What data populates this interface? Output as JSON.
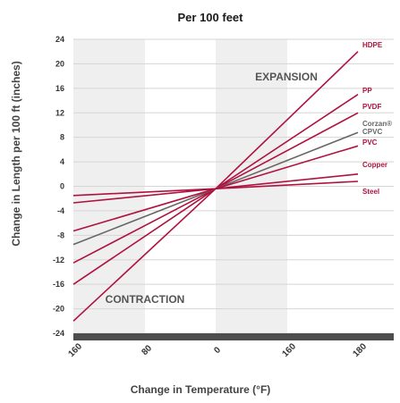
{
  "chart_data": {
    "type": "line",
    "title": "Per 100 feet",
    "xlabel": "Change in Temperature (°F)",
    "ylabel": "Change in Length per 100 ft (inches)",
    "ylim": [
      -24,
      24
    ],
    "y_ticks": [
      "24",
      "20",
      "16",
      "12",
      "8",
      "4",
      "0",
      "-4",
      "-8",
      "-12",
      "-16",
      "-20",
      "-24"
    ],
    "x_ticks": [
      "160",
      "80",
      "0",
      "160",
      "180"
    ],
    "x_domain": [
      -160,
      0,
      180
    ],
    "annotations": {
      "expansion": "EXPANSION",
      "contraction": "CONTRACTION"
    },
    "colors": {
      "line": "#b0123f",
      "cpvc_line": "#666666",
      "bottom_bar": "#4d4d4d",
      "band": "#efefef",
      "grid": "#d5d5d5"
    },
    "series": [
      {
        "name": "HDPE",
        "values": [
          [
            -160,
            -22
          ],
          [
            0,
            -0.4
          ],
          [
            180,
            22
          ]
        ],
        "color": "#b0123f"
      },
      {
        "name": "PP",
        "values": [
          [
            -160,
            -16
          ],
          [
            0,
            -0.4
          ],
          [
            180,
            15
          ]
        ],
        "color": "#b0123f"
      },
      {
        "name": "PVDF",
        "values": [
          [
            -160,
            -12.5
          ],
          [
            0,
            -0.4
          ],
          [
            180,
            12
          ]
        ],
        "color": "#b0123f"
      },
      {
        "name": "Corzan® CPVC",
        "values": [
          [
            -160,
            -9.5
          ],
          [
            0,
            -0.4
          ],
          [
            180,
            8.8
          ]
        ],
        "color": "#666666"
      },
      {
        "name": "PVC",
        "values": [
          [
            -160,
            -7.3
          ],
          [
            0,
            -0.4
          ],
          [
            180,
            6.6
          ]
        ],
        "color": "#b0123f"
      },
      {
        "name": "Copper",
        "values": [
          [
            -160,
            -2.7
          ],
          [
            0,
            -0.4
          ],
          [
            180,
            2
          ]
        ],
        "color": "#b0123f"
      },
      {
        "name": "Steel",
        "values": [
          [
            -160,
            -1.5
          ],
          [
            0,
            -0.4
          ],
          [
            180,
            0.8
          ]
        ],
        "color": "#b0123f"
      }
    ]
  }
}
